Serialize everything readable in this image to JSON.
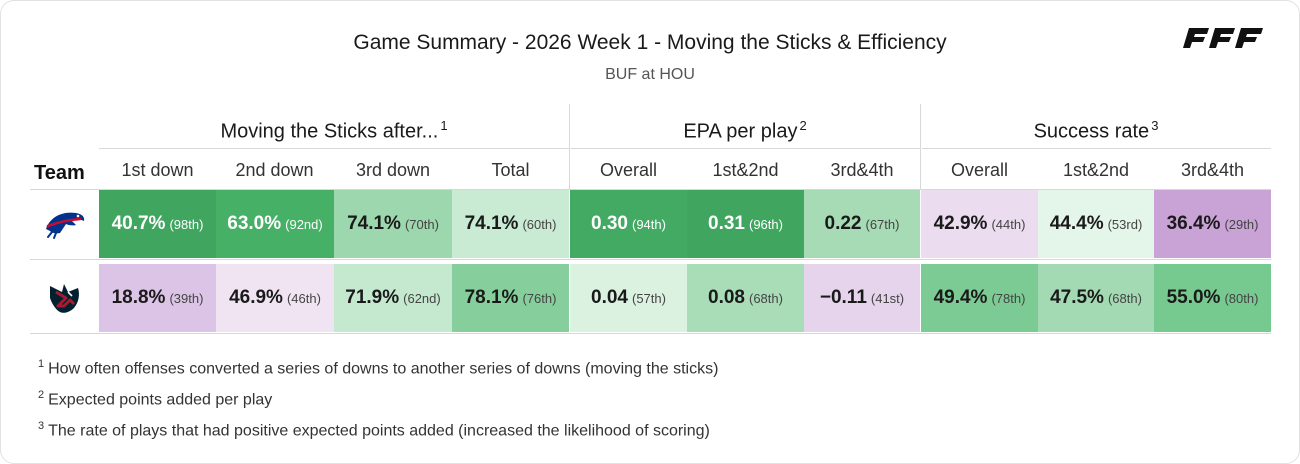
{
  "title": "Game Summary - 2026 Week 1 - Moving the Sticks & Efficiency",
  "subtitle": "BUF at HOU",
  "brand_logo_text": "PFF",
  "team_header": "Team",
  "groups": [
    {
      "label": "Moving the Sticks after...",
      "sup": "1"
    },
    {
      "label": "EPA per play",
      "sup": "2"
    },
    {
      "label": "Success rate",
      "sup": "3"
    }
  ],
  "columns": [
    "1st down",
    "2nd down",
    "3rd down",
    "Total",
    "Overall",
    "1st&2nd",
    "3rd&4th",
    "Overall",
    "1st&2nd",
    "3rd&4th"
  ],
  "rows": [
    {
      "team": "BUF",
      "logo_icon": "bills-logo-icon",
      "cells": [
        {
          "value": "40.7%",
          "rank": "(98th)",
          "color": "#3fa55f",
          "text": "dark"
        },
        {
          "value": "63.0%",
          "rank": "(92nd)",
          "color": "#46b066",
          "text": "dark"
        },
        {
          "value": "74.1%",
          "rank": "(70th)",
          "color": "#9dd7ae",
          "text": "light"
        },
        {
          "value": "74.1%",
          "rank": "(60th)",
          "color": "#c9ebd3",
          "text": "light"
        },
        {
          "value": "0.30",
          "rank": "(94th)",
          "color": "#43aa63",
          "text": "dark"
        },
        {
          "value": "0.31",
          "rank": "(96th)",
          "color": "#3fa55f",
          "text": "dark"
        },
        {
          "value": "0.22",
          "rank": "(67th)",
          "color": "#a6dbb5",
          "text": "light"
        },
        {
          "value": "42.9%",
          "rank": "(44th)",
          "color": "#ecdcef",
          "text": "light"
        },
        {
          "value": "44.4%",
          "rank": "(53rd)",
          "color": "#e4f5e9",
          "text": "light"
        },
        {
          "value": "36.4%",
          "rank": "(29th)",
          "color": "#c9a2d6",
          "text": "light"
        }
      ]
    },
    {
      "team": "HOU",
      "logo_icon": "texans-logo-icon",
      "cells": [
        {
          "value": "18.8%",
          "rank": "(39th)",
          "color": "#dcc4e6",
          "text": "light"
        },
        {
          "value": "46.9%",
          "rank": "(46th)",
          "color": "#f0e4f3",
          "text": "light"
        },
        {
          "value": "71.9%",
          "rank": "(62nd)",
          "color": "#c5e9cf",
          "text": "light"
        },
        {
          "value": "78.1%",
          "rank": "(76th)",
          "color": "#86cf9c",
          "text": "light"
        },
        {
          "value": "0.04",
          "rank": "(57th)",
          "color": "#dbf2e1",
          "text": "light"
        },
        {
          "value": "0.08",
          "rank": "(68th)",
          "color": "#a9ddb8",
          "text": "light"
        },
        {
          "value": "−0.11",
          "rank": "(41st)",
          "color": "#e6d3ec",
          "text": "light"
        },
        {
          "value": "49.4%",
          "rank": "(78th)",
          "color": "#7ccb94",
          "text": "light"
        },
        {
          "value": "47.5%",
          "rank": "(68th)",
          "color": "#a3daB3",
          "text": "light"
        },
        {
          "value": "55.0%",
          "rank": "(80th)",
          "color": "#76c98f",
          "text": "light"
        }
      ]
    }
  ],
  "footnotes": [
    {
      "num": "1",
      "text": "How often offenses converted a series of downs to another series of downs (moving the sticks)"
    },
    {
      "num": "2",
      "text": "Expected points added per play"
    },
    {
      "num": "3",
      "text": "The rate of plays that had positive expected points added (increased the likelihood of scoring)"
    }
  ]
}
